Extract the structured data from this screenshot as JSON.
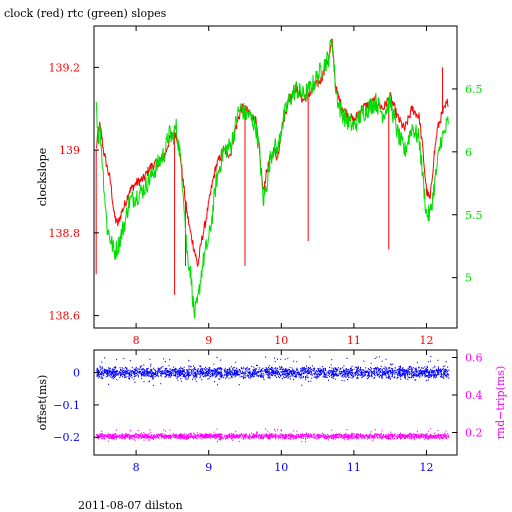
{
  "figure": {
    "title": "clock (red) rtc (green) slopes",
    "footer": "2011-08-07 dilston"
  },
  "colors": {
    "clock": "#ff0000",
    "rtc": "#00dd00",
    "offset": "#0000ff",
    "rndtrip": "#ff00ff",
    "frame": "#000000"
  },
  "chart_data": [
    {
      "type": "line",
      "xlim": [
        7.42,
        12.42
      ],
      "ylim": [
        138.57,
        139.3
      ],
      "y2lim": [
        4.6,
        7.0
      ],
      "xticks": [
        8,
        9,
        10,
        11,
        12
      ],
      "xtick_labels": [
        "8",
        "9",
        "10",
        "11",
        "12"
      ],
      "yticks": [
        138.6,
        138.8,
        139,
        139.2
      ],
      "ytick_labels": [
        "138.6",
        "138.8",
        "139",
        "139.2"
      ],
      "y2ticks": [
        5,
        5.5,
        6,
        6.5
      ],
      "y2tick_labels": [
        "5",
        "5.5",
        "6",
        "6.5"
      ],
      "ylabel": "clockslope",
      "series": [
        {
          "name": "clock",
          "axis": "left",
          "x": [
            7.45,
            7.48,
            7.5,
            7.52,
            7.55,
            7.6,
            7.65,
            7.7,
            7.75,
            7.8,
            7.85,
            7.9,
            8.0,
            8.1,
            8.2,
            8.3,
            8.4,
            8.45,
            8.5,
            8.55,
            8.6,
            8.65,
            8.7,
            8.75,
            8.8,
            8.85,
            8.9,
            8.95,
            9.0,
            9.05,
            9.1,
            9.2,
            9.3,
            9.35,
            9.4,
            9.45,
            9.5,
            9.55,
            9.6,
            9.65,
            9.7,
            9.75,
            9.8,
            9.85,
            9.9,
            9.95,
            10.0,
            10.1,
            10.2,
            10.3,
            10.4,
            10.5,
            10.55,
            10.6,
            10.65,
            10.7,
            10.75,
            10.8,
            10.85,
            10.9,
            11.0,
            11.1,
            11.2,
            11.3,
            11.4,
            11.5,
            11.6,
            11.7,
            11.8,
            11.9,
            11.95,
            12.0,
            12.05,
            12.1,
            12.15,
            12.2,
            12.25,
            12.3
          ],
          "y": [
            139.0,
            139.05,
            139.06,
            139.04,
            139.0,
            138.96,
            138.92,
            138.84,
            138.82,
            138.85,
            138.87,
            138.9,
            138.92,
            138.93,
            138.96,
            138.97,
            138.99,
            139.02,
            139.04,
            139.04,
            139.0,
            138.92,
            138.85,
            138.8,
            138.76,
            138.72,
            138.78,
            138.82,
            138.87,
            138.92,
            138.96,
            139.0,
            138.99,
            139.04,
            139.07,
            139.1,
            139.1,
            139.09,
            139.08,
            139.07,
            138.99,
            138.9,
            138.95,
            138.98,
            139.0,
            138.98,
            139.05,
            139.12,
            139.15,
            139.12,
            139.14,
            139.16,
            139.17,
            139.2,
            139.22,
            139.26,
            139.15,
            139.12,
            139.1,
            139.09,
            139.07,
            139.1,
            139.11,
            139.12,
            139.1,
            139.13,
            139.08,
            139.05,
            139.1,
            139.08,
            139.0,
            138.9,
            138.88,
            138.98,
            139.05,
            139.08,
            139.1,
            139.12
          ],
          "spikes": [
            {
              "x": 7.45,
              "y": 138.7
            },
            {
              "x": 8.53,
              "y": 138.65
            },
            {
              "x": 8.68,
              "y": 138.72
            },
            {
              "x": 9.5,
              "y": 138.72
            },
            {
              "x": 10.37,
              "y": 138.78
            },
            {
              "x": 11.48,
              "y": 138.76
            },
            {
              "x": 12.22,
              "y": 139.2
            }
          ]
        },
        {
          "name": "rtc",
          "axis": "right",
          "x": [
            7.45,
            7.48,
            7.5,
            7.52,
            7.55,
            7.6,
            7.65,
            7.7,
            7.75,
            7.8,
            7.85,
            7.9,
            8.0,
            8.1,
            8.2,
            8.3,
            8.4,
            8.45,
            8.5,
            8.55,
            8.6,
            8.65,
            8.7,
            8.75,
            8.8,
            8.85,
            8.9,
            8.95,
            9.0,
            9.05,
            9.1,
            9.2,
            9.3,
            9.35,
            9.4,
            9.45,
            9.5,
            9.55,
            9.6,
            9.65,
            9.7,
            9.75,
            9.8,
            9.85,
            9.9,
            9.95,
            10.0,
            10.1,
            10.2,
            10.3,
            10.4,
            10.5,
            10.55,
            10.6,
            10.65,
            10.7,
            10.75,
            10.8,
            10.85,
            10.9,
            11.0,
            11.1,
            11.2,
            11.3,
            11.4,
            11.5,
            11.6,
            11.7,
            11.8,
            11.9,
            11.95,
            12.0,
            12.05,
            12.1,
            12.15,
            12.2,
            12.25,
            12.3
          ],
          "y": [
            6.4,
            6.1,
            6.2,
            6.05,
            5.8,
            5.4,
            5.3,
            5.2,
            5.25,
            5.35,
            5.45,
            5.6,
            5.65,
            5.7,
            5.8,
            5.9,
            6.0,
            6.15,
            6.1,
            6.2,
            6.0,
            5.7,
            5.2,
            5.05,
            4.7,
            4.8,
            5.05,
            5.2,
            5.3,
            5.5,
            5.75,
            6.0,
            6.05,
            6.15,
            6.3,
            6.35,
            6.3,
            6.3,
            6.25,
            6.2,
            6.0,
            5.6,
            5.75,
            5.95,
            6.05,
            6.0,
            6.2,
            6.4,
            6.5,
            6.45,
            6.5,
            6.6,
            6.65,
            6.7,
            6.75,
            6.9,
            6.5,
            6.35,
            6.3,
            6.25,
            6.2,
            6.3,
            6.35,
            6.4,
            6.3,
            6.4,
            6.15,
            6.0,
            6.2,
            6.1,
            5.8,
            5.5,
            5.5,
            5.7,
            5.9,
            6.1,
            6.15,
            6.25
          ]
        }
      ]
    },
    {
      "type": "scatter",
      "xlim": [
        7.42,
        12.42
      ],
      "ylim": [
        -0.255,
        0.07
      ],
      "y2lim": [
        0.08,
        0.64
      ],
      "xticks": [
        8,
        9,
        10,
        11,
        12
      ],
      "xtick_labels": [
        "8",
        "9",
        "10",
        "11",
        "12"
      ],
      "yticks": [
        0,
        -0.1,
        -0.2
      ],
      "ytick_labels": [
        "0",
        "−0.1",
        "−0.2"
      ],
      "y2ticks": [
        0.6,
        0.4,
        0.2
      ],
      "y2tick_labels": [
        "0.6",
        "0.4",
        "0.2"
      ],
      "ylabel": "offset(ms)",
      "y2label": "rnd−trip(ms)",
      "series": [
        {
          "name": "offset",
          "axis": "left",
          "x_range": [
            7.45,
            12.3
          ],
          "center": 0.0,
          "band": [
            -0.025,
            0.025
          ],
          "outlier_range": [
            -0.04,
            0.05
          ]
        },
        {
          "name": "rnd-trip",
          "axis": "right",
          "x_range": [
            7.45,
            12.3
          ],
          "center": 0.18,
          "band": [
            0.16,
            0.2
          ],
          "outlier_range": [
            0.15,
            0.22
          ]
        }
      ]
    }
  ]
}
